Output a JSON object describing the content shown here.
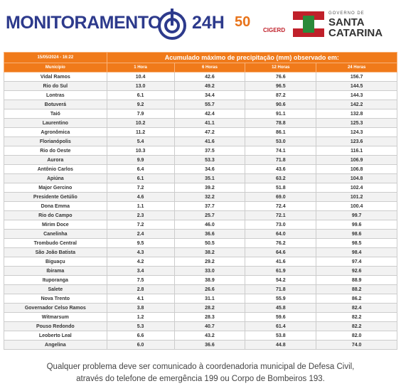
{
  "header": {
    "title": "MONITORAMENTO",
    "title_suffix": "24H",
    "badge": "50",
    "partner": "CIGERD",
    "gov_top": "GOVERNO DE",
    "gov_name_1": "SANTA",
    "gov_name_2": "CATARINA"
  },
  "table": {
    "timestamp": "15/05/2024 - 16:22",
    "caption": "Acumulado máximo de precipitação (mm) observado em:",
    "columns": [
      "Município",
      "1 Hora",
      "6 Horas",
      "12 Horas",
      "24 Horas"
    ],
    "rows": [
      [
        "Vidal Ramos",
        "10.4",
        "42.6",
        "76.6",
        "156.7"
      ],
      [
        "Rio do Sul",
        "13.0",
        "49.2",
        "96.5",
        "144.5"
      ],
      [
        "Lontras",
        "6.1",
        "34.4",
        "87.2",
        "144.3"
      ],
      [
        "Botuverá",
        "9.2",
        "55.7",
        "90.6",
        "142.2"
      ],
      [
        "Taió",
        "7.9",
        "42.4",
        "91.1",
        "132.8"
      ],
      [
        "Laurentino",
        "10.2",
        "41.1",
        "78.8",
        "125.3"
      ],
      [
        "Agronômica",
        "11.2",
        "47.2",
        "86.1",
        "124.3"
      ],
      [
        "Florianópolis",
        "5.4",
        "41.6",
        "53.0",
        "123.6"
      ],
      [
        "Rio do Oeste",
        "10.3",
        "37.5",
        "74.1",
        "116.1"
      ],
      [
        "Aurora",
        "9.9",
        "53.3",
        "71.8",
        "106.9"
      ],
      [
        "Antônio Carlos",
        "6.4",
        "34.6",
        "43.6",
        "106.8"
      ],
      [
        "Apiúna",
        "6.1",
        "35.1",
        "63.2",
        "104.8"
      ],
      [
        "Major Gercino",
        "7.2",
        "39.2",
        "51.8",
        "102.4"
      ],
      [
        "Presidente Getúlio",
        "4.6",
        "32.2",
        "69.0",
        "101.2"
      ],
      [
        "Dona Emma",
        "1.1",
        "37.7",
        "72.4",
        "100.4"
      ],
      [
        "Rio do Campo",
        "2.3",
        "25.7",
        "72.1",
        "99.7"
      ],
      [
        "Mirim Doce",
        "7.2",
        "46.0",
        "73.0",
        "99.6"
      ],
      [
        "Canelinha",
        "2.4",
        "36.6",
        "64.0",
        "98.6"
      ],
      [
        "Trombudo Central",
        "9.5",
        "50.5",
        "76.2",
        "98.5"
      ],
      [
        "São João Batista",
        "4.3",
        "38.2",
        "64.6",
        "98.4"
      ],
      [
        "Biguaçu",
        "4.2",
        "29.2",
        "41.6",
        "97.4"
      ],
      [
        "Ibirama",
        "3.4",
        "33.0",
        "61.9",
        "92.6"
      ],
      [
        "Ituporanga",
        "7.5",
        "38.9",
        "54.2",
        "88.9"
      ],
      [
        "Salete",
        "2.8",
        "26.6",
        "71.8",
        "88.2"
      ],
      [
        "Nova Trento",
        "4.1",
        "31.1",
        "55.9",
        "86.2"
      ],
      [
        "Governador Celso Ramos",
        "3.8",
        "28.2",
        "45.8",
        "82.4"
      ],
      [
        "Witmarsum",
        "1.2",
        "28.3",
        "59.6",
        "82.2"
      ],
      [
        "Pouso Redondo",
        "5.3",
        "40.7",
        "61.4",
        "82.2"
      ],
      [
        "Leoberto Leal",
        "6.6",
        "43.2",
        "53.8",
        "82.0"
      ],
      [
        "Angelina",
        "6.0",
        "36.6",
        "44.8",
        "74.0"
      ]
    ]
  },
  "footer": {
    "line_1": "Qualquer problema deve ser comunicado à coordenadoria municipal de Defesa Civil,",
    "line_2": "através do telefone de emergência 199 ou Corpo de Bombeiros 193."
  }
}
